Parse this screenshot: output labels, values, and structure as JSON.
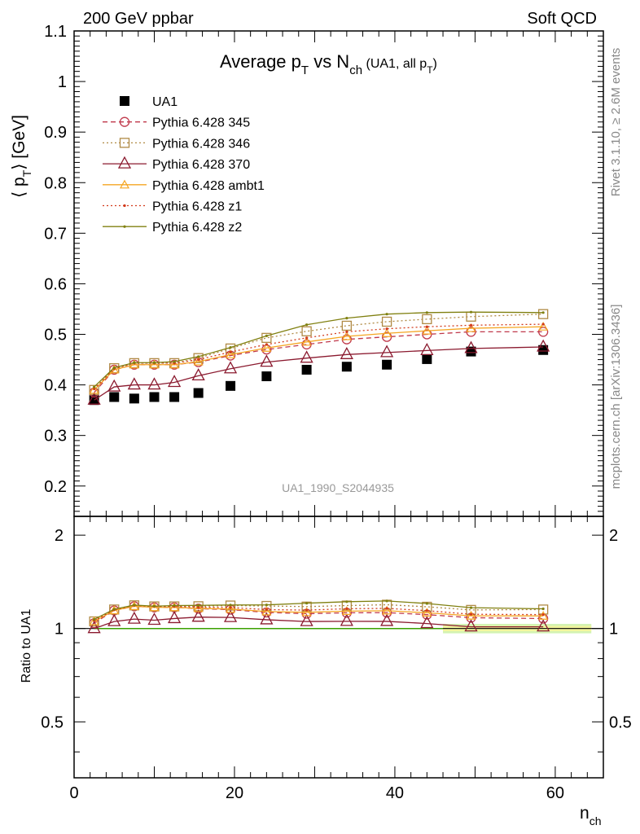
{
  "header": {
    "left": "200 GeV ppbar",
    "right": "Soft QCD"
  },
  "side_text": {
    "rivet": "Rivet 3.1.10, ≥ 2.6M events",
    "mcplots": "mcplots.cern.ch [arXiv:1306.3436]"
  },
  "chart_data": {
    "type": "line",
    "title": "Average pT vs Nch (UA1, all pT)",
    "title_parts": {
      "main": "Average p",
      "sub1": "T",
      "mid": " vs N",
      "sub2": "ch",
      "small": " (UA1, all p",
      "sub3": "T",
      "close": ")"
    },
    "watermark": "UA1_1990_S2044935",
    "xlabel": "n",
    "xlabel_sub": "ch",
    "ylabel": "⟨ p",
    "ylabel_sub": "T",
    "ylabel_tail": "⟩ [GeV]",
    "ratio_ylabel": "Ratio to UA1",
    "xlim": [
      0,
      66
    ],
    "ylim": [
      0.14,
      1.1
    ],
    "ratio_ylim": [
      0.33,
      2.3
    ],
    "ratio_scale": "log",
    "x_ticks": [
      "0",
      "20",
      "40",
      "60"
    ],
    "y_ticks": [
      "0.2",
      "0.3",
      "0.4",
      "0.5",
      "0.6",
      "0.7",
      "0.8",
      "0.9",
      "1",
      "1.1"
    ],
    "ratio_ticks": [
      "0.5",
      "1",
      "2"
    ],
    "legend_placement": "top-left",
    "x": [
      2.5,
      5,
      7.5,
      10,
      12.5,
      15.5,
      19.5,
      24,
      29,
      34,
      39,
      44,
      49.5,
      58.5
    ],
    "series": [
      {
        "name": "UA1",
        "color": "#000000",
        "marker": "filled-square",
        "dash": "none",
        "values": [
          0.37,
          0.376,
          0.373,
          0.376,
          0.376,
          0.384,
          0.398,
          0.417,
          0.43,
          0.436,
          0.44,
          0.451,
          0.466,
          0.469
        ]
      },
      {
        "name": "Pythia 6.428 345",
        "color": "#c0394b",
        "marker": "open-circle",
        "dash": "6,4",
        "values": [
          0.385,
          0.43,
          0.44,
          0.44,
          0.44,
          0.445,
          0.458,
          0.47,
          0.48,
          0.49,
          0.495,
          0.5,
          0.505,
          0.505
        ]
      },
      {
        "name": "Pythia 6.428 346",
        "color": "#b08a45",
        "marker": "open-square",
        "dash": "2,3",
        "values": [
          0.39,
          0.433,
          0.443,
          0.443,
          0.443,
          0.453,
          0.472,
          0.493,
          0.506,
          0.517,
          0.525,
          0.53,
          0.535,
          0.54
        ]
      },
      {
        "name": "Pythia 6.428 370",
        "color": "#8b1a2f",
        "marker": "open-triangle",
        "dash": "none",
        "values": [
          0.37,
          0.396,
          0.4,
          0.4,
          0.405,
          0.418,
          0.432,
          0.445,
          0.453,
          0.46,
          0.464,
          0.468,
          0.472,
          0.475
        ]
      },
      {
        "name": "Pythia 6.428 ambt1",
        "color": "#f5a623",
        "marker": "small-open-triangle",
        "dash": "none",
        "values": [
          0.39,
          0.43,
          0.44,
          0.44,
          0.44,
          0.446,
          0.46,
          0.473,
          0.485,
          0.496,
          0.502,
          0.507,
          0.512,
          0.515
        ]
      },
      {
        "name": "Pythia 6.428 z1",
        "color": "#d23a1c",
        "marker": "dot",
        "dash": "2,3",
        "values": [
          0.392,
          0.432,
          0.443,
          0.443,
          0.443,
          0.45,
          0.465,
          0.48,
          0.493,
          0.505,
          0.511,
          0.515,
          0.518,
          0.52
        ]
      },
      {
        "name": "Pythia 6.428 z2",
        "color": "#808010",
        "marker": "dot",
        "dash": "none",
        "values": [
          0.396,
          0.434,
          0.444,
          0.444,
          0.446,
          0.456,
          0.474,
          0.497,
          0.519,
          0.532,
          0.54,
          0.543,
          0.544,
          0.543
        ]
      }
    ],
    "data_band": {
      "x_start": 46,
      "x_end": 64.5,
      "inner_halfwidth": 0.02,
      "outer_halfwidth": 0.035
    }
  }
}
